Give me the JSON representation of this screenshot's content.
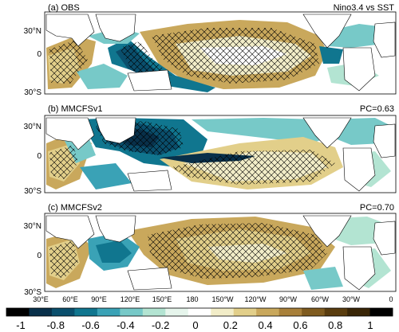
{
  "chart_data": {
    "type": "heatmap",
    "colorbar": {
      "ticks": [
        "-1",
        "-0.8",
        "-0.6",
        "-0.4",
        "-0.2",
        "0",
        "0.2",
        "0.4",
        "0.6",
        "0.8",
        "1"
      ],
      "colors": [
        "#000000",
        "#08304a",
        "#0a4f6d",
        "#10768f",
        "#3aa2b6",
        "#77c9c8",
        "#b3e4d2",
        "#e6f5ec",
        "#ffffff",
        "#f2edc8",
        "#e2cf8a",
        "#c9a85c",
        "#a8803a",
        "#7f5b1f",
        "#5a3d0f",
        "#3a2607",
        "#000000"
      ]
    },
    "x_ticks": [
      "30°E",
      "60°E",
      "90°E",
      "120°E",
      "150°E",
      "180",
      "150°W",
      "120°W",
      "90°W",
      "60°W",
      "30°W",
      "0"
    ],
    "y_ticks": [
      "30°N",
      "0",
      "30°S"
    ],
    "panels": [
      {
        "label": "(a) OBS",
        "corner_text": "Nino3.4 vs SST"
      },
      {
        "label": "(b) MMCFSv1",
        "corner_text": "PC=0.63"
      },
      {
        "label": "(c) MMCFSv2",
        "corner_text": "PC=0.70"
      }
    ]
  }
}
